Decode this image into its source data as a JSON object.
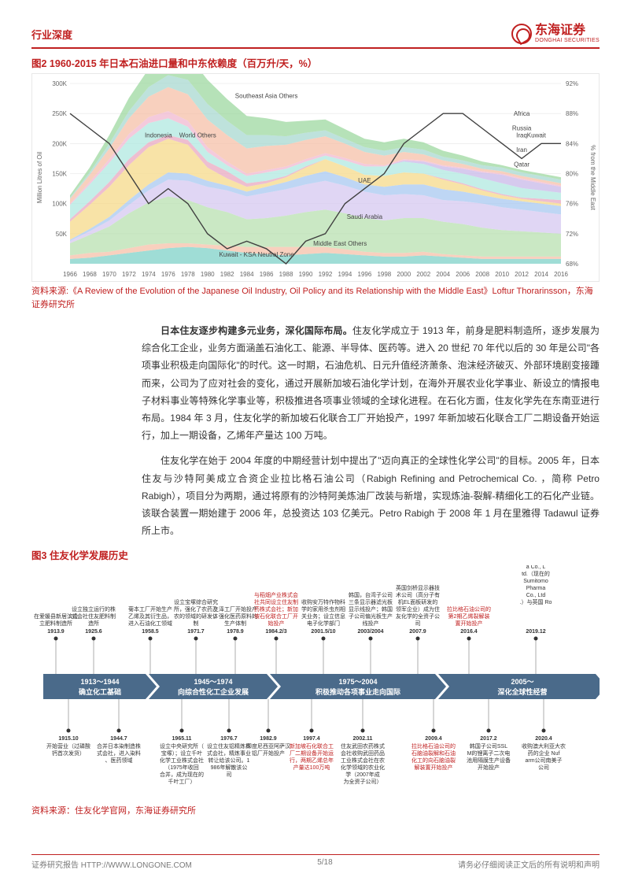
{
  "header": {
    "section_title": "行业深度",
    "brand_cn": "东海证券",
    "brand_en": "DONGHAI SECURITIES"
  },
  "figure2": {
    "title": "图2  1960-2015 年日本石油进口量和中东依赖度（百万升/天，%）",
    "source": "资料来源:《A Review of the Evolution of the Japanese Oil Industry, Oil Policy and its Relationship with the Middle East》Loftur Thorarinsson，东海证券研究所",
    "type": "stacked-area-with-line",
    "y_left_label": "Million Litres of Oil",
    "y_right_label": "% from the Middle East",
    "x_ticks": [
      1966,
      1968,
      1970,
      1972,
      1974,
      1976,
      1978,
      1980,
      1982,
      1984,
      1986,
      1988,
      1990,
      1992,
      1994,
      1996,
      1998,
      2000,
      2002,
      2004,
      2006,
      2008,
      2010,
      2012,
      2014,
      2016
    ],
    "y_left_ticks": [
      "50K",
      "100K",
      "150K",
      "200K",
      "250K",
      "300K"
    ],
    "y_right_ticks": [
      "68%",
      "72%",
      "76%",
      "80%",
      "84%",
      "88%",
      "92%"
    ],
    "series_labels": [
      "Southeast Asia Others",
      "Africa",
      "Russia",
      "Kuwait",
      "Iraq",
      "Iran",
      "Qatar",
      "UAE",
      "Saudi Arabia",
      "Middle East Others",
      "Kuwait - KSA Neutral Zone",
      "Indonesia",
      "World Others"
    ],
    "series_colors": {
      "Kuwait - KSA Neutral Zone": "#7fd1c8",
      "Middle East Others": "#f5c0a8",
      "Saudi Arabia": "#b8e0b0",
      "UAE": "#d6c8f0",
      "Qatar": "#a8c8f0",
      "Iran": "#f5d98a",
      "Iraq": "#e8a8c0",
      "Kuwait": "#b0e8e0",
      "Russia": "#c8b8e8",
      "Africa": "#f0b8d0",
      "Southeast Asia Others": "#9ed8a0",
      "Indonesia": "#f5c0a8",
      "World Others": "#a8d8d0"
    },
    "line_color": "#404040",
    "grid_color": "#e4e4e4",
    "background_color": "#ffffff"
  },
  "paragraph1": {
    "bold_lead": "日本住友逐步构建多元业务，深化国际布局。",
    "text": "住友化学成立于 1913 年，前身是肥料制造所，逐步发展为综合化工企业，业务方面涵盖石油化工、能源、半导体、医药等。进入 20 世纪 70 年代以后的 30 年是公司\"各项事业积极走向国际化\"的时代。这一时期，石油危机、日元升值经济萧条、泡沫经济破灭、外部环境剧变接踵而来，公司为了应对社会的变化，通过开展新加坡石油化学计划，在海外开展农业化学事业、新设立的情报电子材料事业等特殊化学事业等，积极推进各项事业领域的全球化进程。在石化方面，住友化学先在东南亚进行布局。1984 年 3 月，住友化学的新加坡石化联合工厂开始投产，1997 年新加坡石化联合工厂二期设备开始运行，加上一期设备，乙烯年产量达 100 万吨。"
  },
  "paragraph2": {
    "text": "住友化学在始于 2004 年度的中期经营计划中提出了\"迈向真正的全球性化学公司\"的目标。2005 年，日本住友与沙特阿美成立合资企业拉比格石油公司（Rabigh Refining and Petrochemical Co. ，简称 Petro Rabigh），项目分为两期，通过将原有的沙特阿美炼油厂改装与新增，实现炼油-裂解-精细化工的石化产业链。该联合装置一期始建于 2006 年，总投资达 103 亿美元。Petro Rabigh 于 2008 年 1 月在里雅得 Tadawul 证券所上市。"
  },
  "figure3": {
    "title": "图3  住友化学发展历史",
    "source": "资料来源：住友化学官网，东海证券研究所",
    "type": "timeline",
    "band_color": "#4a6a8a",
    "band_text_color": "#ffffff",
    "dot_color": "#333333",
    "highlight_color": "#c02020",
    "bands": [
      {
        "label": "1913～1944",
        "sub": "确立化工基础"
      },
      {
        "label": "1945～1974",
        "sub": "向综合性化工企业发展"
      },
      {
        "label": "1975～2004",
        "sub": "积极推动各项事业走向国际"
      },
      {
        "label": "2005～",
        "sub": "深化全球性经营"
      }
    ],
    "events_top": [
      {
        "year": "1913.9",
        "text": "在爱媛县新居滨设立肥料制造所"
      },
      {
        "year": "1925.6",
        "text": "设立独立运行的株式会社住友肥料制造所"
      },
      {
        "year": "1958.5",
        "text": "菊本工厂开始生产乙烯及其衍生品，进入石油化工领域"
      },
      {
        "year": "1971.7",
        "text": "设立宝塚综合研究所，强化了农药及农的领域的研发体制"
      },
      {
        "year": "1978.9",
        "text": "三泽工厂开始投产，强化医药原料的生产体制"
      },
      {
        "year": "1984.2/3",
        "text": "与稻畑产业株式会社共同设立住友制药株式会社；新加坡石化联合工厂开始投产",
        "red": true
      },
      {
        "year": "2001.5/10",
        "text": "收购安万特作物科学的家用杀虫剂相关业务；设立信息电子化学部门"
      },
      {
        "year": "2003/2004",
        "text": "韩国，台湾子公司三条显示器滤光板显示线投产；韩国子公司偏光板生产线投产"
      },
      {
        "year": "2007.9",
        "text": "英国剑桥显示器技术公司（高分子有机EL面板研发的领军企业）成为住友化学的全资子公司"
      },
      {
        "year": "2016.4",
        "text": "拉比格石油公司的第2期乙烯裂解装置开始投产",
        "red": true
      },
      {
        "year": "2019.12",
        "text": "Sumitomo Dainippon Pharma Co., Ltd.（现在的 Sumitomo Pharma Co., Ltd.）与英国 Roivant Sciences 公司开展战略合作"
      }
    ],
    "events_bottom": [
      {
        "year": "1915.10",
        "text": "开始营业（过磷酸钙首次发货）"
      },
      {
        "year": "1944.7",
        "text": "合并日本染制造株式会社，进入染料、医药领域"
      },
      {
        "year": "1965.11",
        "text": "设立中央研究所（宝塚）；设立千叶化学工业株式会社（1975年收回合并，成为现在的千叶工厂）"
      },
      {
        "year": "1976.7",
        "text": "设立住友铝精炼株式会社，精炼事业转让给该公司。1986年解散该公司"
      },
      {
        "year": "1982.9",
        "text": "印度尼西亚阿萨汉铝厂开始投产"
      },
      {
        "year": "1997.4",
        "text": "新加坡石化联合工厂二期设备开始运行，两期乙烯总年产量达100万吨",
        "red": true
      },
      {
        "year": "2002.11",
        "text": "住友武田农药株式会社收购武田药品工业株式会社在农化学领域的农业化学（2007年成为全资子公司）"
      },
      {
        "year": "2009.4",
        "text": "拉比格石油公司的石脑油裂解和石油化工的向石脑油裂解装置开始投产",
        "red": true
      },
      {
        "year": "2017.2",
        "text": "韩国子公司SSLM的锂离子二次电池用隔膜生产设备开始投产"
      },
      {
        "year": "2020.4",
        "text": "收购澳大利亚大农药的企业 Nufarm公司南美子公司"
      }
    ]
  },
  "footer": {
    "left": "证券研究报告   HTTP://WWW.LONGONE.COM",
    "page": "5/18",
    "right": "请务必仔细阅读正文后的所有说明和声明"
  }
}
